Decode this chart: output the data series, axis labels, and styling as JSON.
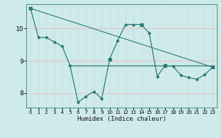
{
  "xlabel": "Humidex (Indice chaleur)",
  "bg_color": "#ceeaea",
  "grid_color_h": "#f0b8b8",
  "grid_color_v": "#c8dede",
  "line_color": "#2a7a70",
  "x_ticks": [
    0,
    1,
    2,
    3,
    4,
    5,
    6,
    7,
    8,
    9,
    10,
    11,
    12,
    13,
    14,
    15,
    16,
    17,
    18,
    19,
    20,
    21,
    22,
    23
  ],
  "y_ticks": [
    8,
    9,
    10
  ],
  "ylim": [
    7.55,
    10.75
  ],
  "xlim": [
    -0.5,
    23.5
  ],
  "series1_x": [
    0,
    1,
    2,
    3,
    4,
    5,
    6,
    7,
    8,
    9,
    10,
    11,
    12,
    13,
    14,
    15,
    16,
    17,
    18,
    19,
    20,
    21,
    22,
    23
  ],
  "series1_y": [
    10.62,
    9.72,
    9.72,
    9.58,
    9.45,
    8.85,
    7.72,
    7.9,
    8.05,
    7.83,
    9.05,
    9.62,
    10.12,
    10.12,
    10.12,
    9.85,
    8.52,
    8.85,
    8.83,
    8.55,
    8.48,
    8.43,
    8.57,
    8.8
  ],
  "series2_x": [
    0,
    23
  ],
  "series2_y": [
    10.62,
    8.8
  ],
  "series3_x": [
    5,
    23
  ],
  "series3_y": [
    8.85,
    8.85
  ],
  "series2_markers_x": [
    0,
    10,
    14,
    17,
    23
  ],
  "series2_markers_y": [
    10.62,
    9.05,
    10.12,
    8.85,
    8.8
  ]
}
